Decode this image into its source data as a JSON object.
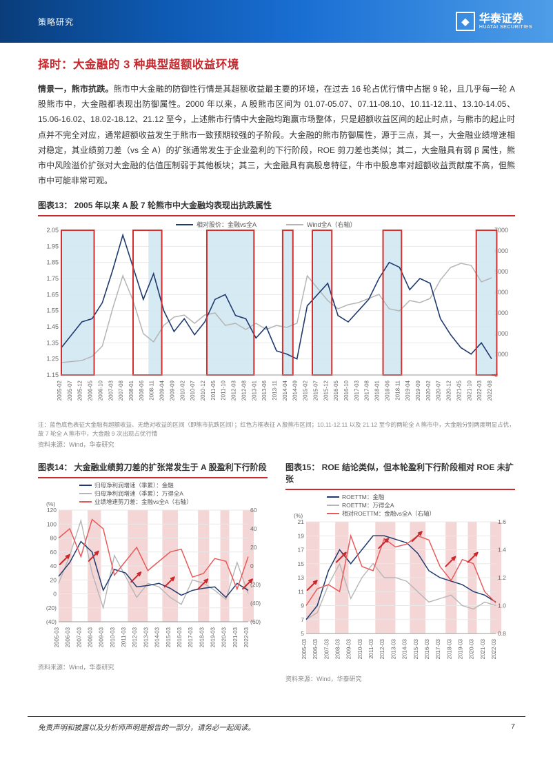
{
  "header": {
    "category": "策略研究",
    "logo_cn": "华泰证券",
    "logo_en": "HUATAI SECURITIES"
  },
  "section_title": "择时：大金融的 3 种典型超额收益环境",
  "paragraph": {
    "lead": "情景一，熊市抗跌。",
    "text": "熊市中大金融的防御性行情是其超额收益最主要的环境，在过去 16 轮占优行情中占据 9 轮，且几乎每一轮 A 股熊市中，大金融都表现出防御属性。2000 年以来，A 股熊市区间为 01.07-05.07、07.11-08.10、10.11-12.11、13.10-14.05、15.06-16.02、18.02-18.12、21.12 至今，上述熊市行情中大金融均跑赢市场整体，只是超额收益区间的起止时点，与熊市的起止时点并不完全对应，通常超额收益发生于熊市一致预期较强的子阶段。大金融的熊市防御属性，源于三点，其一，大金融业绩增速相对稳定，其业绩剪刀差（vs 全 A）的扩张通常发生于企业盈利的下行阶段，ROE 剪刀差也类似；其二，大金融具有弱 β 属性，熊市中风险溢价扩张对大金融的估值压制弱于其他板块；其三，大金融具有高股息特征，牛市中股息率对超额收益贡献度不高，但熊市中可能非常可观。"
  },
  "chart13": {
    "title": "图表13： 2005 年以来 A 股 7 轮熊市中大金融均表现出抗跌属性",
    "legend": {
      "l1": "相对股价：金融vs全A",
      "l2": "Wind全A（右轴）"
    },
    "colors": {
      "line1": "#1f3a6e",
      "line2": "#b5b5b5",
      "band": "#cfe6f2",
      "box": "#d32f2f",
      "grid": "#e8e8e8",
      "axis": "#999"
    },
    "y_left": {
      "min": 1.15,
      "max": 2.05,
      "ticks": [
        1.15,
        1.25,
        1.35,
        1.45,
        1.55,
        1.65,
        1.75,
        1.85,
        1.95,
        2.05
      ]
    },
    "y_right": {
      "min": 0,
      "max": 7000,
      "ticks": [
        0,
        1000,
        2000,
        3000,
        4000,
        5000,
        6000,
        7000
      ]
    },
    "x_labels": [
      "2005-02",
      "2005-07",
      "2005-12",
      "2006-05",
      "2006-10",
      "2007-03",
      "2007-08",
      "2008-01",
      "2008-06",
      "2008-11",
      "2009-04",
      "2009-09",
      "2010-02",
      "2010-07",
      "2010-12",
      "2011-05",
      "2011-10",
      "2012-03",
      "2012-08",
      "2013-01",
      "2013-06",
      "2013-11",
      "2014-04",
      "2014-09",
      "2015-02",
      "2015-07",
      "2015-12",
      "2016-05",
      "2016-10",
      "2017-03",
      "2017-08",
      "2018-01",
      "2018-06",
      "2018-11",
      "2019-04",
      "2019-09",
      "2020-02",
      "2020-07",
      "2020-12",
      "2021-05",
      "2021-10",
      "2022-03",
      "2022-08"
    ],
    "line1_data": [
      1.32,
      1.4,
      1.48,
      1.5,
      1.6,
      1.8,
      2.02,
      1.82,
      1.62,
      1.78,
      1.55,
      1.42,
      1.5,
      1.4,
      1.48,
      1.62,
      1.65,
      1.52,
      1.5,
      1.38,
      1.45,
      1.3,
      1.28,
      1.25,
      1.58,
      1.65,
      1.72,
      1.52,
      1.48,
      1.55,
      1.62,
      1.75,
      1.85,
      1.82,
      1.68,
      1.75,
      1.72,
      1.5,
      1.4,
      1.32,
      1.28,
      1.35,
      1.25
    ],
    "line2_data": [
      600,
      650,
      700,
      900,
      1400,
      3200,
      4800,
      3600,
      2000,
      1600,
      2400,
      2800,
      2900,
      2500,
      2900,
      3000,
      2400,
      2500,
      2200,
      2500,
      2200,
      2400,
      2300,
      2500,
      4800,
      4200,
      3600,
      3200,
      3400,
      3500,
      3700,
      3900,
      3200,
      3100,
      3600,
      3500,
      3700,
      4600,
      5200,
      5400,
      5300,
      4500,
      4700
    ],
    "blue_bands": [
      [
        0,
        3.2
      ],
      [
        8.5,
        9.8
      ],
      [
        14.2,
        18.8
      ],
      [
        21.6,
        22.6
      ],
      [
        24.5,
        26.4
      ],
      [
        31.4,
        33.2
      ],
      [
        40.5,
        42.5
      ]
    ],
    "red_boxes": [
      [
        0,
        3.2
      ],
      [
        7.0,
        9.8
      ],
      [
        14.2,
        18.8
      ],
      [
        21.6,
        22.6
      ],
      [
        24.5,
        26.4
      ],
      [
        31.4,
        33.2
      ],
      [
        40.5,
        42.5
      ]
    ],
    "note": "注：蓝色底色表征大金融有超额收益、无绝对收益的区间（即熊市抗跌区间）；红色方框表征 A 股熊市区间；10.11-12.11 以及 21.12 至今的两轮全 A 熊市中，大金融分别两度明显占优，故 7 轮全 A 熊市中，大金融 9 次出现占优行情",
    "source": "资料来源：Wind，华泰研究"
  },
  "chart14": {
    "title": "图表14： 大金融业绩剪刀差的扩张常发生于 A 股盈利下行阶段",
    "legend": {
      "l1": "归母净利润增速（季累）：金融",
      "l2": "归母净利润增速（季累）：万得全A",
      "l3": "业绩增速剪刀差：金融vs全A（右轴）"
    },
    "colors": {
      "l1": "#1f3a6e",
      "l2": "#b5b5b5",
      "l3": "#e85a5a",
      "band": "#f5d6d6",
      "arrow": "#c9282d",
      "grid": "#e8e8e8"
    },
    "y_left": {
      "min": -40,
      "max": 120,
      "ticks": [
        "(40)",
        "(20)",
        "0",
        "20",
        "40",
        "60",
        "80",
        "100",
        "120"
      ],
      "unit": "(%)"
    },
    "y_right": {
      "min": -60,
      "max": 60,
      "ticks": [
        "(60)",
        "(40)",
        "(20)",
        "0",
        "20",
        "40",
        "60"
      ]
    },
    "x_labels": [
      "2005-03",
      "2006-03",
      "2007-03",
      "2008-03",
      "2009-03",
      "2010-03",
      "2011-03",
      "2012-03",
      "2013-03",
      "2014-03",
      "2015-03",
      "2016-03",
      "2017-03",
      "2018-03",
      "2019-03",
      "2020-03",
      "2021-03",
      "2022-03"
    ],
    "l1": [
      25,
      45,
      75,
      60,
      5,
      35,
      30,
      10,
      12,
      15,
      8,
      -2,
      5,
      8,
      10,
      -5,
      15,
      5
    ],
    "l2": [
      15,
      55,
      105,
      30,
      -20,
      55,
      25,
      -5,
      15,
      10,
      -5,
      -15,
      20,
      15,
      5,
      -8,
      45,
      0
    ],
    "l3": [
      30,
      40,
      10,
      50,
      40,
      -10,
      5,
      20,
      -5,
      5,
      15,
      18,
      -12,
      -8,
      8,
      5,
      -25,
      10
    ],
    "bands": [
      [
        0,
        1.2
      ],
      [
        2.6,
        3.8
      ],
      [
        6.2,
        8.0
      ],
      [
        9.3,
        10.7
      ],
      [
        12.5,
        13.5
      ],
      [
        14.5,
        15.3
      ],
      [
        16.5,
        17.5
      ]
    ],
    "arrows": [
      [
        0.6,
        50
      ],
      [
        3.2,
        55
      ],
      [
        7.0,
        25
      ],
      [
        10.0,
        18
      ],
      [
        13.0,
        15
      ],
      [
        17.0,
        15
      ]
    ],
    "source": "资料来源：Wind，华泰研究"
  },
  "chart15": {
    "title": "图表15： ROE 结论类似，但本轮盈利下行阶段相对 ROE 未扩张",
    "legend": {
      "l1": "ROETTM：金融",
      "l2": "ROETTM：万得全A",
      "l3": "相对ROETTM：金融vs全A（右轴）"
    },
    "colors": {
      "l1": "#1f3a6e",
      "l2": "#b5b5b5",
      "l3": "#e85a5a",
      "band": "#f5d6d6",
      "arrow": "#c9282d",
      "grid": "#e8e8e8"
    },
    "y_left": {
      "min": 5,
      "max": 21,
      "ticks": [
        5,
        7,
        9,
        11,
        13,
        15,
        17,
        19,
        21
      ],
      "unit": "(%)"
    },
    "y_right": {
      "min": 0.8,
      "max": 1.6,
      "ticks": [
        "0.8",
        "1.0",
        "1.2",
        "1.4",
        "1.6"
      ]
    },
    "x_labels": [
      "2005-03",
      "2006-03",
      "2007-03",
      "2008-03",
      "2009-03",
      "2010-03",
      "2011-03",
      "2012-03",
      "2013-03",
      "2014-03",
      "2015-03",
      "2016-03",
      "2017-03",
      "2018-03",
      "2019-03",
      "2020-03",
      "2021-03",
      "2022-03"
    ],
    "l1": [
      7,
      9,
      14,
      17,
      15,
      17,
      19,
      19,
      18.5,
      18,
      16.5,
      14,
      13,
      12.5,
      12,
      11,
      10.5,
      9.5
    ],
    "l2": [
      7,
      8,
      12,
      15,
      10,
      13,
      15,
      13,
      13,
      12.5,
      11,
      9.5,
      10,
      10.5,
      9,
      8.5,
      9.5,
      9
    ],
    "l3": [
      1.0,
      1.12,
      1.15,
      1.1,
      1.5,
      1.28,
      1.25,
      1.48,
      1.42,
      1.44,
      1.5,
      1.47,
      1.28,
      1.18,
      1.33,
      1.3,
      1.1,
      1.02
    ],
    "bands": [
      [
        0,
        1.2
      ],
      [
        2.6,
        3.8
      ],
      [
        6.2,
        8.0
      ],
      [
        9.3,
        10.7
      ],
      [
        12.5,
        13.5
      ],
      [
        14.5,
        15.3
      ],
      [
        16.5,
        17.5
      ]
    ],
    "arrows": [
      [
        0.6,
        1.15
      ],
      [
        3.2,
        1.35
      ],
      [
        7.0,
        1.45
      ],
      [
        10.0,
        1.5
      ],
      [
        13.0,
        1.32
      ],
      [
        15.0,
        1.35
      ]
    ],
    "source": "资料来源：Wind，华泰研究"
  },
  "footer": {
    "disclaimer": "免责声明和披露以及分析师声明是报告的一部分，请务必一起阅读。",
    "page": "7"
  }
}
